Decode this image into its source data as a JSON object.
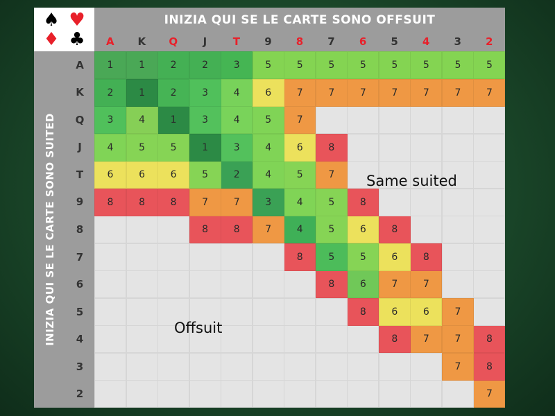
{
  "suits": [
    {
      "symbol": "♠",
      "color": "#000000"
    },
    {
      "symbol": "♥",
      "color": "#e8202a"
    },
    {
      "symbol": "♦",
      "color": "#e8202a"
    },
    {
      "symbol": "♣",
      "color": "#000000"
    }
  ],
  "top_header": "INIZIA QUI SE LE CARTE SONO OFFSUIT",
  "side_header": "INIZIA QUI SE LE CARTE SONO SUITED",
  "ranks": [
    "A",
    "K",
    "Q",
    "J",
    "T",
    "9",
    "8",
    "7",
    "6",
    "5",
    "4",
    "3",
    "2"
  ],
  "col_label_colors": [
    "#e8202a",
    "#333333",
    "#e8202a",
    "#333333",
    "#e8202a",
    "#333333",
    "#e8202a",
    "#333333",
    "#e8202a",
    "#333333",
    "#e8202a",
    "#333333",
    "#e8202a"
  ],
  "empty_color": "#e4e4e4",
  "grid": [
    [
      1,
      1,
      2,
      2,
      3,
      5,
      5,
      5,
      5,
      5,
      5,
      5,
      5
    ],
    [
      2,
      1,
      2,
      3,
      4,
      6,
      7,
      7,
      7,
      7,
      7,
      7,
      7
    ],
    [
      3,
      4,
      1,
      3,
      4,
      5,
      7,
      null,
      null,
      null,
      null,
      null,
      null
    ],
    [
      4,
      5,
      5,
      1,
      3,
      4,
      6,
      8,
      null,
      null,
      null,
      null,
      null
    ],
    [
      6,
      6,
      6,
      5,
      2,
      4,
      5,
      7,
      null,
      null,
      null,
      null,
      null
    ],
    [
      8,
      8,
      8,
      7,
      7,
      3,
      4,
      5,
      8,
      null,
      null,
      null,
      null
    ],
    [
      null,
      null,
      null,
      8,
      8,
      7,
      4,
      5,
      6,
      8,
      null,
      null,
      null
    ],
    [
      null,
      null,
      null,
      null,
      null,
      null,
      8,
      5,
      5,
      6,
      8,
      null,
      null
    ],
    [
      null,
      null,
      null,
      null,
      null,
      null,
      null,
      8,
      6,
      7,
      7,
      null,
      null
    ],
    [
      null,
      null,
      null,
      null,
      null,
      null,
      null,
      null,
      8,
      6,
      6,
      7,
      null
    ],
    [
      null,
      null,
      null,
      null,
      null,
      null,
      null,
      null,
      null,
      8,
      7,
      7,
      8
    ],
    [
      null,
      null,
      null,
      null,
      null,
      null,
      null,
      null,
      null,
      null,
      null,
      7,
      8
    ],
    [
      null,
      null,
      null,
      null,
      null,
      null,
      null,
      null,
      null,
      null,
      null,
      null,
      7
    ]
  ],
  "overlays": {
    "suited": "Same suited",
    "offsuit": "Offsuit"
  }
}
